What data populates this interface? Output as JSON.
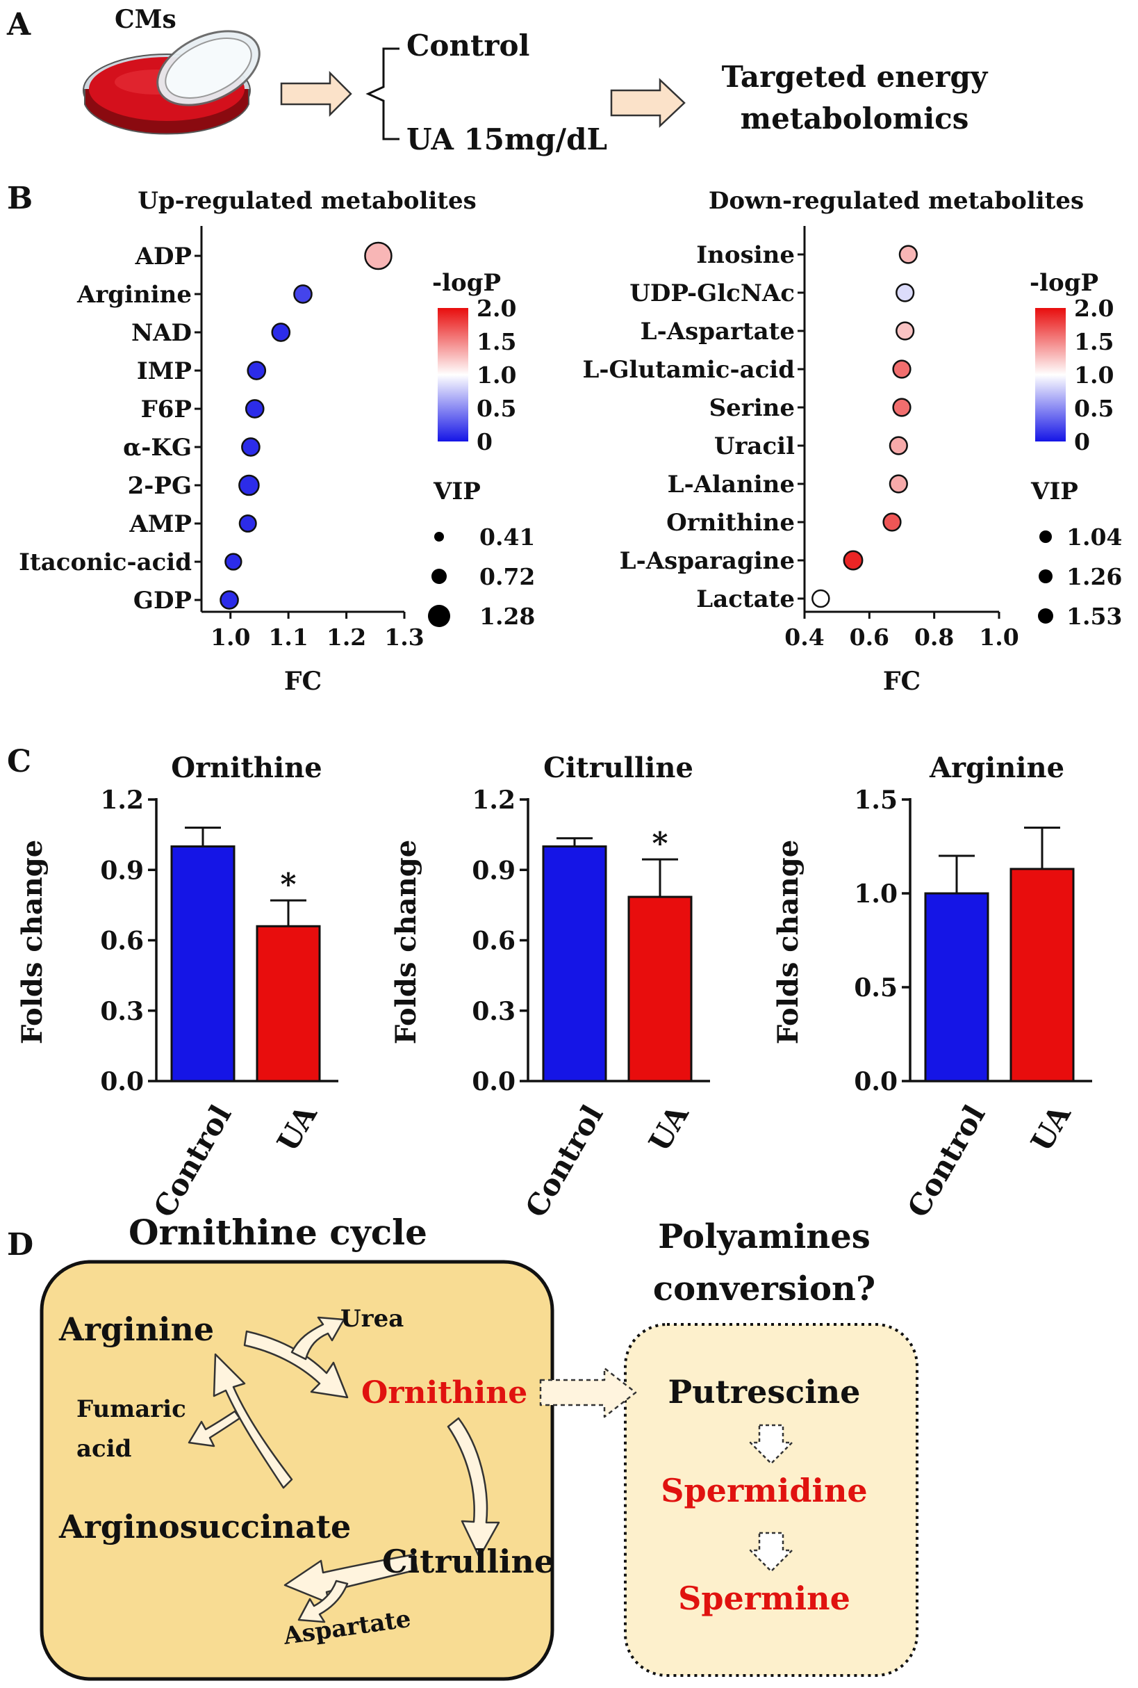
{
  "panel_labels": {
    "a": "A",
    "b": "B",
    "c": "C",
    "d": "D"
  },
  "panel_a": {
    "cells": "CMs",
    "group_control": "Control",
    "group_ua": "UA 15mg/dL",
    "method_line1": "Targeted energy",
    "method_line2": "metabolomics"
  },
  "colors": {
    "blue": "#1515e6",
    "red": "#e80d0d",
    "white": "#ffffff",
    "box_fill": "#f8dc93",
    "box2_fill": "#fdf0cc",
    "arrow_fill": "#fbe2c9"
  },
  "chart_data": [
    {
      "type": "scatter",
      "title": "Up-regulated metabolites",
      "xlabel": "FC",
      "xlim": [
        0.95,
        1.3
      ],
      "xticks": [
        "1.0",
        "1.1",
        "1.2",
        "1.3"
      ],
      "xtick_values": [
        1.0,
        1.1,
        1.2,
        1.3
      ],
      "categories": [
        "ADP",
        "Arginine",
        "NAD",
        "IMP",
        "F6P",
        "α-KG",
        "2-PG",
        "AMP",
        "Itaconic-acid",
        "GDP"
      ],
      "fc": [
        1.255,
        1.125,
        1.087,
        1.045,
        1.042,
        1.035,
        1.032,
        1.03,
        1.005,
        0.998
      ],
      "logp": [
        1.3,
        0.2,
        0.1,
        0.1,
        0.1,
        0.1,
        0.1,
        0.1,
        0.1,
        0.1
      ],
      "vip": [
        1.28,
        0.72,
        0.72,
        0.72,
        0.72,
        0.72,
        0.85,
        0.65,
        0.62,
        0.72
      ],
      "color_legend": {
        "title": "-logP",
        "ticks": [
          "2.0",
          "1.5",
          "1.0",
          "0.5",
          "0"
        ],
        "range": [
          0,
          2.0
        ]
      },
      "size_legend": {
        "title": "VIP",
        "labels": [
          "0.41",
          "0.72",
          "1.28"
        ],
        "values": [
          0.41,
          0.72,
          1.28
        ]
      }
    },
    {
      "type": "scatter",
      "title": "Down-regulated metabolites",
      "xlabel": "FC",
      "xlim": [
        0.4,
        1.0
      ],
      "xticks": [
        "0.4",
        "0.6",
        "0.8",
        "1.0"
      ],
      "xtick_values": [
        0.4,
        0.6,
        0.8,
        1.0
      ],
      "categories": [
        "Inosine",
        "UDP-GlcNAc",
        "L-Aspartate",
        "L-Glutamic-acid",
        "Serine",
        "Uracil",
        "L-Alanine",
        "Ornithine",
        "L-Asparagine",
        "Lactate"
      ],
      "fc": [
        0.72,
        0.71,
        0.71,
        0.7,
        0.7,
        0.69,
        0.69,
        0.67,
        0.55,
        0.45
      ],
      "logp": [
        1.3,
        0.85,
        1.25,
        1.6,
        1.6,
        1.35,
        1.35,
        1.7,
        1.9,
        1.0
      ],
      "vip": [
        1.26,
        1.26,
        1.26,
        1.26,
        1.26,
        1.26,
        1.26,
        1.26,
        1.4,
        1.2
      ],
      "color_legend": {
        "title": "-logP",
        "ticks": [
          "2.0",
          "1.5",
          "1.0",
          "0.5",
          "0"
        ],
        "range": [
          0,
          2.0
        ]
      },
      "size_legend": {
        "title": "VIP",
        "labels": [
          "1.04",
          "1.26",
          "1.53"
        ],
        "values": [
          1.04,
          1.26,
          1.53
        ]
      }
    },
    {
      "type": "bar",
      "title": "Ornithine",
      "ylabel": "Folds change",
      "categories": [
        "Control",
        "UA"
      ],
      "values": [
        1.0,
        0.66
      ],
      "errors": [
        0.08,
        0.11
      ],
      "significance": [
        "",
        "*"
      ],
      "ylim": [
        0,
        1.2
      ],
      "yticks": [
        "0.0",
        "0.3",
        "0.6",
        "0.9",
        "1.2"
      ],
      "ytick_values": [
        0,
        0.3,
        0.6,
        0.9,
        1.2
      ]
    },
    {
      "type": "bar",
      "title": "Citrulline",
      "ylabel": "Folds change",
      "categories": [
        "Control",
        "UA"
      ],
      "values": [
        1.0,
        0.785
      ],
      "errors": [
        0.035,
        0.16
      ],
      "significance": [
        "",
        "*"
      ],
      "ylim": [
        0,
        1.2
      ],
      "yticks": [
        "0.0",
        "0.3",
        "0.6",
        "0.9",
        "1.2"
      ],
      "ytick_values": [
        0,
        0.3,
        0.6,
        0.9,
        1.2
      ]
    },
    {
      "type": "bar",
      "title": "Arginine",
      "ylabel": "Folds change",
      "categories": [
        "Control",
        "UA"
      ],
      "values": [
        1.0,
        1.13
      ],
      "errors": [
        0.2,
        0.22
      ],
      "significance": [
        "",
        ""
      ],
      "ylim": [
        0,
        1.5
      ],
      "yticks": [
        "0.0",
        "0.5",
        "1.0",
        "1.5"
      ],
      "ytick_values": [
        0,
        0.5,
        1.0,
        1.5
      ]
    }
  ],
  "panel_d": {
    "cycle_title": "Ornithine cycle",
    "poly_title_line1": "Polyamines",
    "poly_title_line2": "conversion?",
    "arginine": "Arginine",
    "urea": "Urea",
    "ornithine": "Ornithine",
    "fumaric_line1": "Fumaric",
    "fumaric_line2": "acid",
    "arginosuccinate": "Arginosuccinate",
    "citrulline": "Citrulline",
    "aspartate": "Aspartate",
    "putrescine": "Putrescine",
    "spermidine": "Spermidine",
    "spermine": "Spermine"
  }
}
